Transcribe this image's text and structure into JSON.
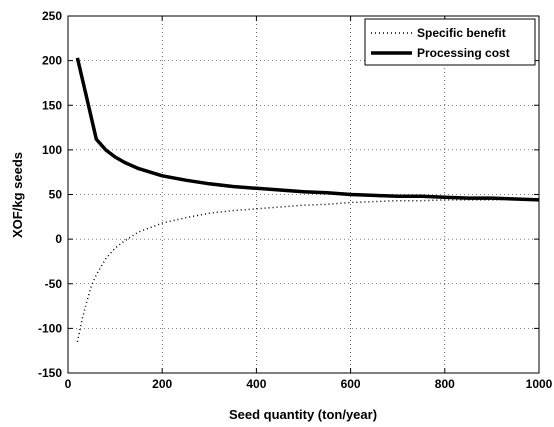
{
  "chart_data": {
    "type": "line",
    "title": "",
    "xlabel": "Seed quantity (ton/year)",
    "ylabel": "XOF/kg seeds",
    "xlim": [
      0,
      1000
    ],
    "ylim": [
      -150,
      250
    ],
    "xticks": [
      0,
      200,
      400,
      600,
      800,
      1000
    ],
    "yticks": [
      -150,
      -100,
      -50,
      0,
      50,
      100,
      150,
      200,
      250
    ],
    "grid": true,
    "legend_position": "top-right",
    "series": [
      {
        "name": "Specific benefit",
        "style": "dotted",
        "color": "#000000",
        "x": [
          20,
          30,
          40,
          50,
          60,
          80,
          100,
          120,
          150,
          200,
          250,
          300,
          350,
          400,
          450,
          500,
          550,
          600,
          650,
          700,
          750,
          800,
          850,
          900,
          950,
          1000
        ],
        "y": [
          -115,
          -90,
          -70,
          -52,
          -40,
          -22,
          -10,
          -2,
          8,
          18,
          24,
          29,
          32,
          34,
          36,
          38,
          39,
          41,
          42,
          43,
          43,
          44,
          44,
          44,
          45,
          45
        ]
      },
      {
        "name": "Processing cost",
        "style": "solid",
        "color": "#000000",
        "x": [
          20,
          40,
          60,
          80,
          100,
          120,
          150,
          200,
          250,
          300,
          350,
          400,
          450,
          500,
          550,
          600,
          650,
          700,
          750,
          800,
          850,
          900,
          950,
          1000
        ],
        "y": [
          203,
          158,
          112,
          100,
          92,
          86,
          79,
          71,
          66,
          62,
          59,
          57,
          55,
          53,
          52,
          50,
          49,
          48,
          48,
          47,
          46,
          46,
          45,
          44
        ]
      }
    ]
  }
}
